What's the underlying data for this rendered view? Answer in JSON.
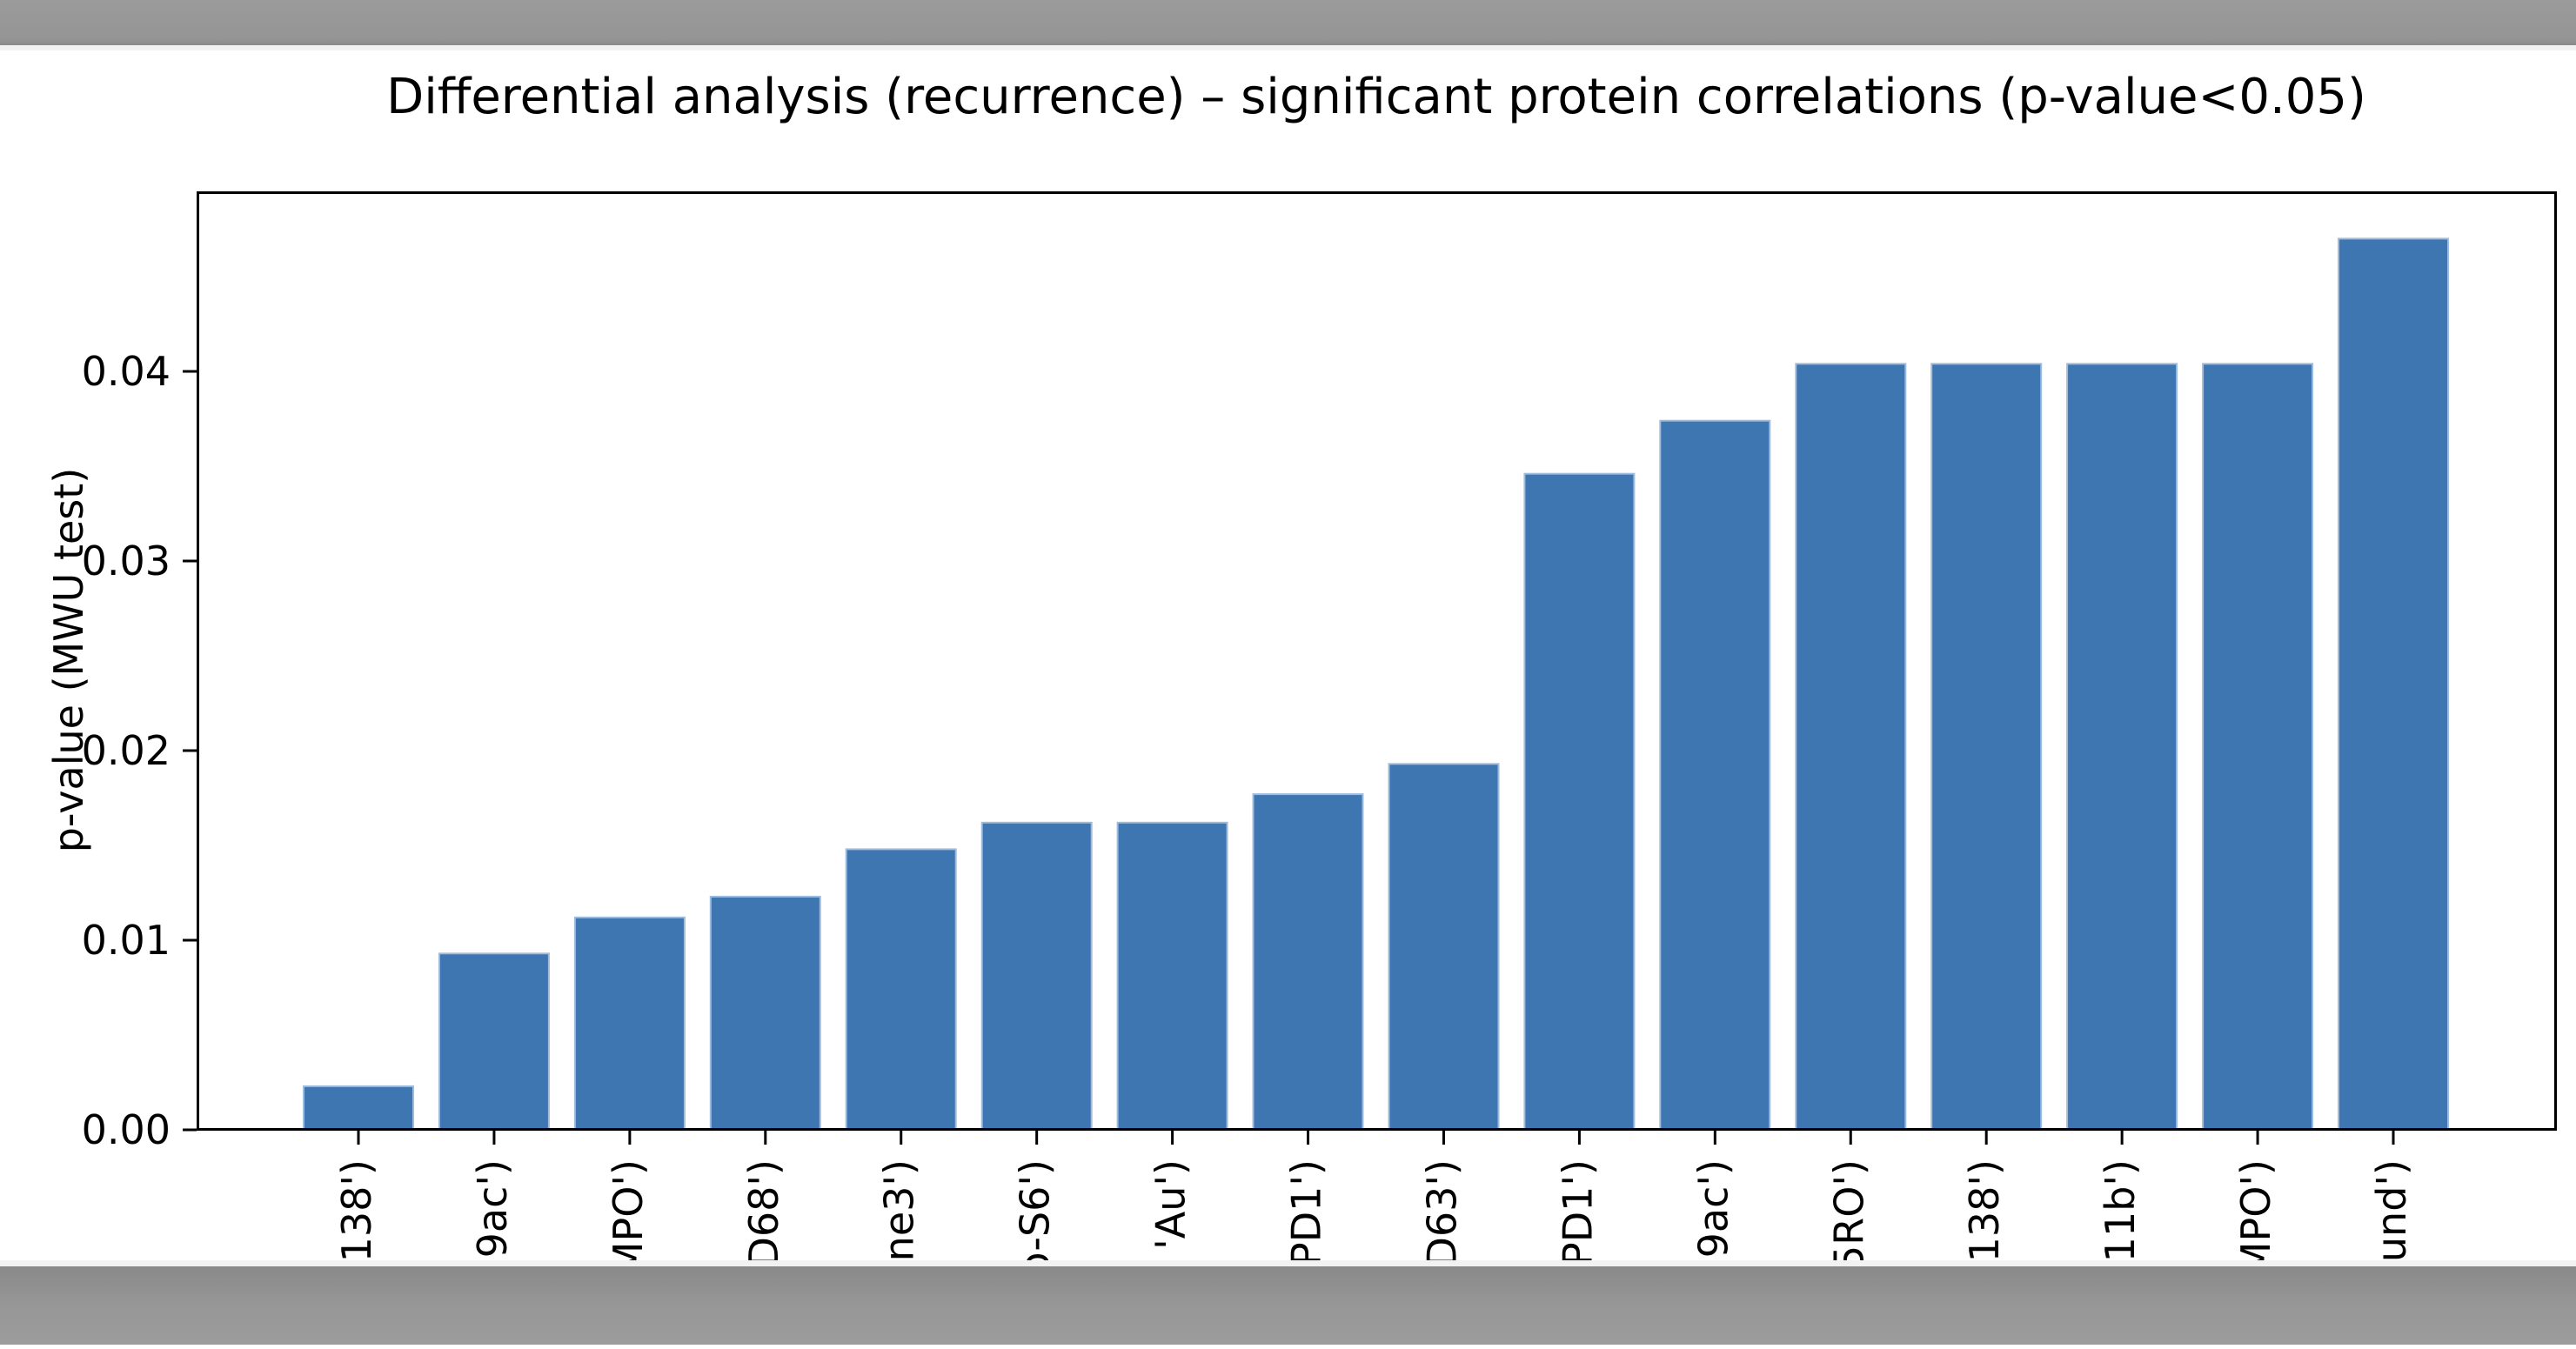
{
  "figure": {
    "title": "Differential analysis (recurrence) – significant protein correlations (p-value<0.05)",
    "ylabel": "p-value (MWU test)",
    "colors": {
      "bar_fill": "#3d76b0",
      "bar_edge": "#9fbcdc",
      "spine": "#000000",
      "figure_bg": "#ffffff",
      "band_gray_top": "#999999",
      "band_gray_bottom": "#8d8d8d",
      "band_light_strip": "#f2f2f2"
    }
  },
  "chart_data": {
    "type": "bar",
    "title": "Differential analysis (recurrence) – significant protein correlations (p-value<0.05)",
    "xlabel": "",
    "ylabel": "p-value (MWU test)",
    "categories": [
      "138')",
      "9ac')",
      "MPO')",
      "D68')",
      "ne3')",
      "o-S6')",
      "'Au')",
      "PD1')",
      "D63')",
      "PD1')",
      "9ac')",
      "5RO')",
      "138')",
      "11b')",
      "MPO')",
      "und')"
    ],
    "values": [
      0.0023,
      0.0093,
      0.0112,
      0.0123,
      0.0148,
      0.0162,
      0.0162,
      0.0177,
      0.0193,
      0.0346,
      0.0374,
      0.0404,
      0.0404,
      0.0404,
      0.0404,
      0.047
    ],
    "yticks": [
      0,
      0.01,
      0.02,
      0.03,
      0.04
    ],
    "ytick_labels": [
      "0.00",
      "0.01",
      "0.02",
      "0.03",
      "0.04"
    ],
    "ylim": [
      0,
      0.0495
    ],
    "grid": false,
    "legend": null,
    "bar_color": "#3d76b0",
    "xtick_labels_rotated_90": true,
    "xtick_labels_clipped_at_bottom": true
  }
}
